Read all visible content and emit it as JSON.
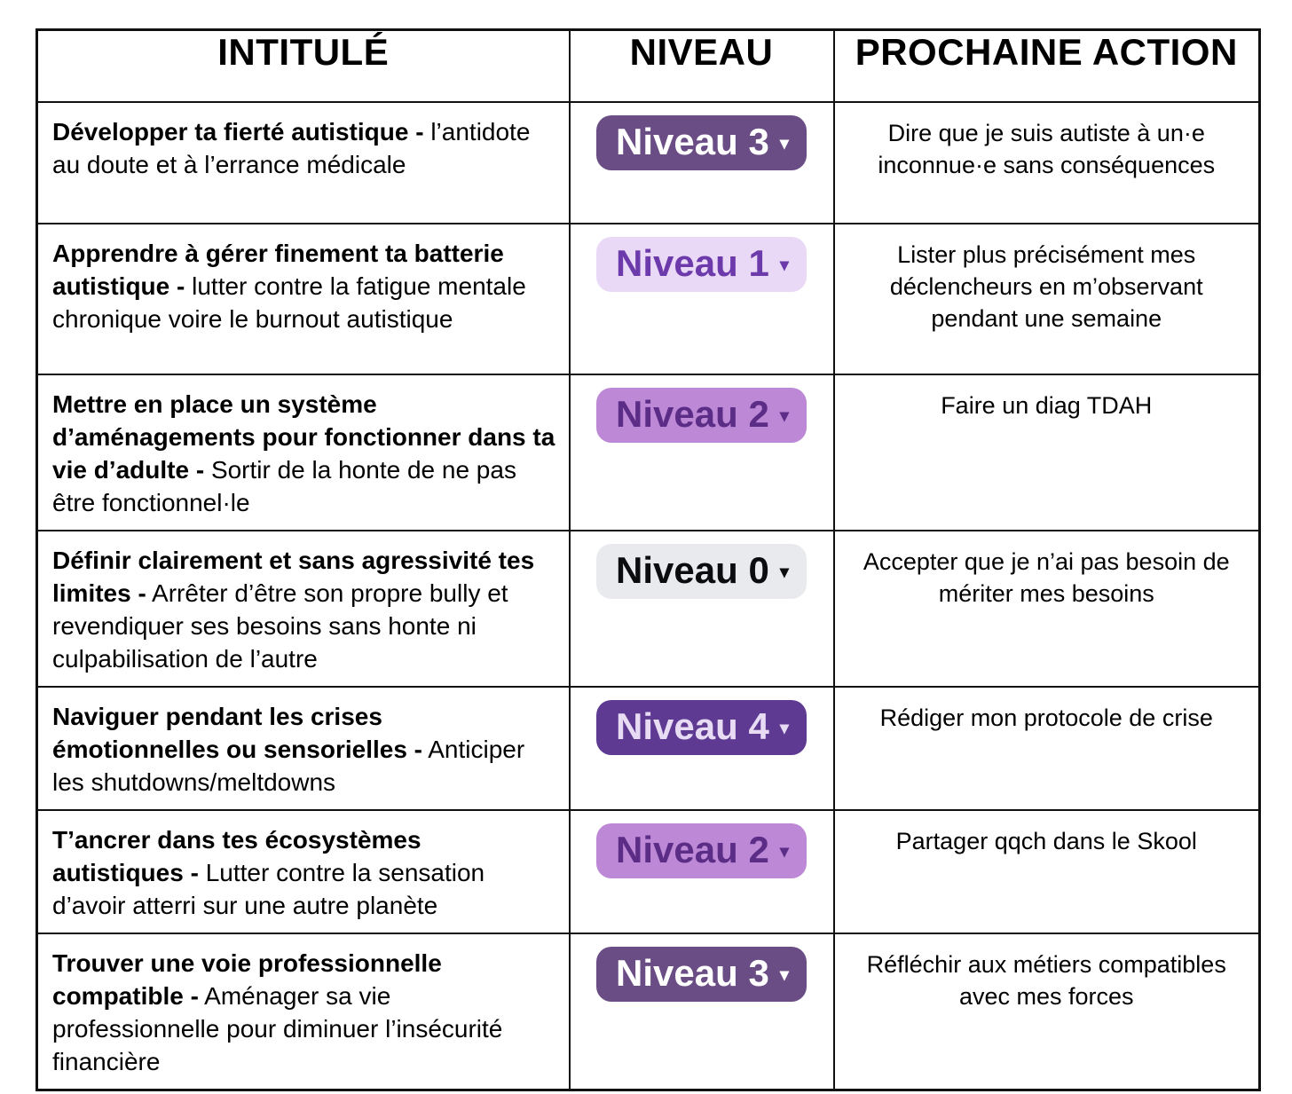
{
  "table": {
    "headers": {
      "intitule": "INTITULÉ",
      "niveau": "NIVEAU",
      "prochaine_action": "PROCHAINE ACTION"
    },
    "level_caret": "▾",
    "rows": [
      {
        "title_bold": "Développer ta fierté autistique -",
        "title_rest": "l’antidote au doute et à l’errance médicale",
        "level": {
          "label": "Niveau 3",
          "value": 3,
          "bg": "#6b4d86",
          "fg": "#ffffff"
        },
        "action": "Dire que je suis autiste à un·e inconnue·e sans conséquences"
      },
      {
        "title_bold": "Apprendre à gérer finement ta batterie autistique -",
        "title_rest": "lutter contre la fatigue mentale chronique voire le burnout autistique",
        "level": {
          "label": "Niveau 1",
          "value": 1,
          "bg": "#e9d8f6",
          "fg": "#6d3aab"
        },
        "action": "Lister plus précisément mes déclencheurs en m’observant pendant une semaine"
      },
      {
        "title_bold": "Mettre en place un système d’aménagements pour fonctionner dans ta vie d’adulte -",
        "title_rest": "Sortir de la honte de ne pas être fonctionnel·le",
        "level": {
          "label": "Niveau 2",
          "value": 2,
          "bg": "#bd88d6",
          "fg": "#5c2d87"
        },
        "action": "Faire un diag TDAH"
      },
      {
        "title_bold": "Définir clairement et sans agressivité tes limites -",
        "title_rest": "Arrêter d’être son propre bully et revendiquer ses besoins sans honte ni culpabilisation de l’autre",
        "level": {
          "label": "Niveau 0",
          "value": 0,
          "bg": "#e8eaed",
          "fg": "#0b0c0e"
        },
        "action": "Accepter que je n’ai pas besoin de mériter mes besoins"
      },
      {
        "title_bold": "Naviguer pendant les crises émotionnelles ou sensorielles -",
        "title_rest": "Anticiper les shutdowns/meltdowns",
        "level": {
          "label": "Niveau 4",
          "value": 4,
          "bg": "#5f3a92",
          "fg": "#e8dcf5"
        },
        "action": "Rédiger mon protocole de crise"
      },
      {
        "title_bold": "T’ancrer dans tes écosystèmes autistiques -",
        "title_rest": "Lutter contre la sensation d’avoir atterri sur une autre planète",
        "level": {
          "label": "Niveau 2",
          "value": 2,
          "bg": "#bd88d6",
          "fg": "#5c2d87"
        },
        "action": "Partager qqch dans le Skool"
      },
      {
        "title_bold": "Trouver une voie professionnelle compatible -",
        "title_rest": "Aménager sa vie professionnelle pour diminuer l’insécurité financière",
        "level": {
          "label": "Niveau 3",
          "value": 3,
          "bg": "#6b4d86",
          "fg": "#ffffff"
        },
        "action": "Réfléchir aux métiers compatibles avec mes forces"
      }
    ]
  }
}
